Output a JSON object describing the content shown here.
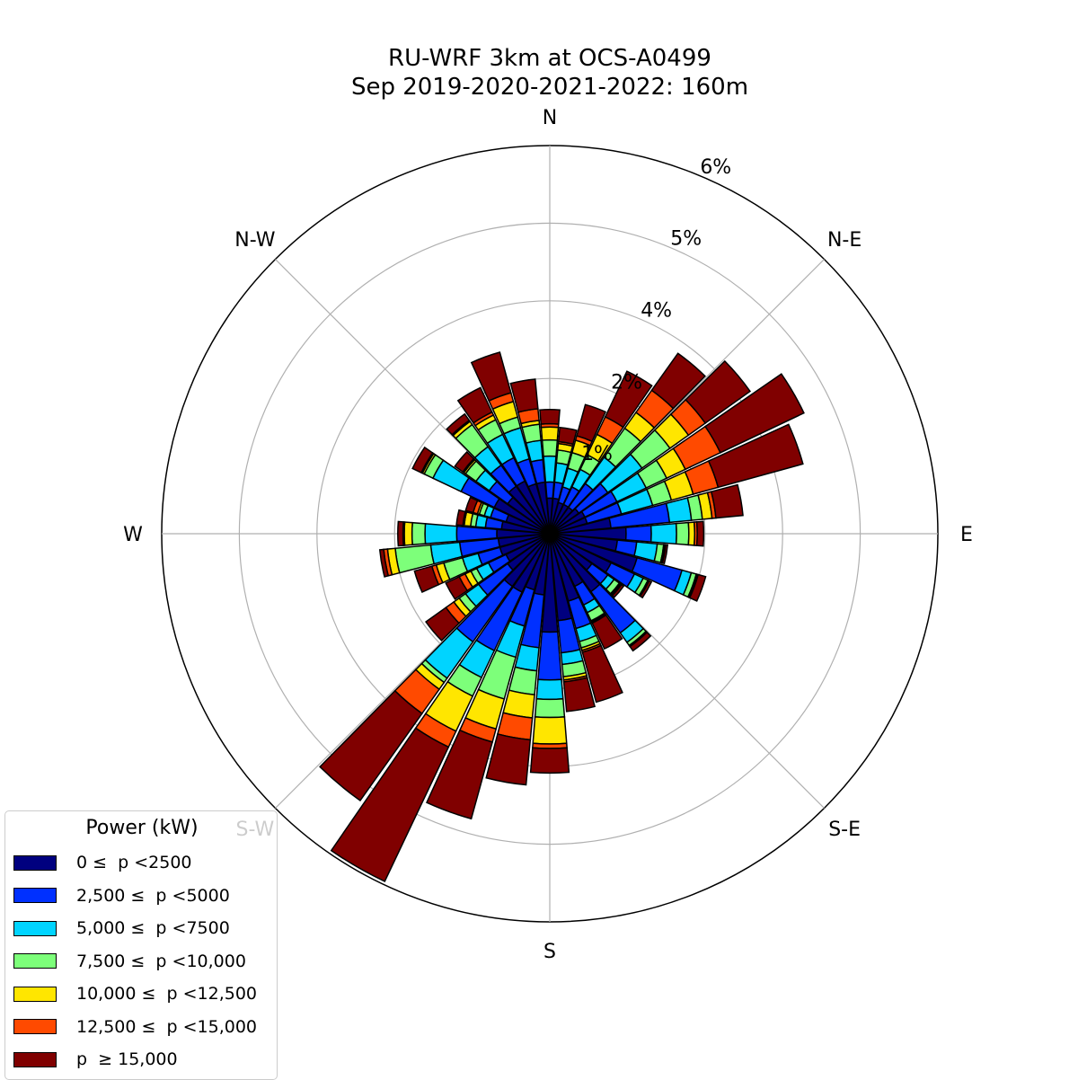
{
  "chart_data": {
    "type": "windrose",
    "title": [
      "RU-WRF 3km at OCS-A0499",
      "Sep 2019-2020-2021-2022: 160m"
    ],
    "direction_labels": [
      {
        "label": "N",
        "deg": 0
      },
      {
        "label": "N-E",
        "deg": 45
      },
      {
        "label": "E",
        "deg": 90
      },
      {
        "label": "S-E",
        "deg": 135
      },
      {
        "label": "S",
        "deg": 180
      },
      {
        "label": "S-W",
        "deg": 225
      },
      {
        "label": "W",
        "deg": 270
      },
      {
        "label": "N-W",
        "deg": 315
      }
    ],
    "rticks": [
      1.2,
      2.4,
      3.6,
      4.8,
      6.0
    ],
    "rtick_labels": [
      "1%",
      "2%",
      "4%",
      "5%",
      "6%"
    ],
    "rmax": 6.0,
    "unit": "% frequency",
    "directions": [
      0,
      10,
      20,
      30,
      40,
      50,
      60,
      70,
      80,
      90,
      100,
      110,
      120,
      130,
      140,
      150,
      160,
      170,
      180,
      190,
      200,
      210,
      220,
      230,
      240,
      250,
      260,
      270,
      280,
      290,
      300,
      310,
      320,
      330,
      340,
      350
    ],
    "legend_title": "Power (kW)",
    "legend_position": "lower-left",
    "series": [
      {
        "name": "0 ≤  p <2500",
        "color": "#00007f",
        "values": [
          0.55,
          0.55,
          0.5,
          0.5,
          0.5,
          0.55,
          0.6,
          0.6,
          0.95,
          1.18,
          1.05,
          1.4,
          1.05,
          0.8,
          1.1,
          0.9,
          1.08,
          1.35,
          1.52,
          0.95,
          0.9,
          1.0,
          1.0,
          0.8,
          0.75,
          0.8,
          0.8,
          0.82,
          0.75,
          0.7,
          0.95,
          0.8,
          0.9,
          0.9,
          0.8,
          0.8
        ]
      },
      {
        "name": "2,500 ≤  p <5000",
        "color": "#0030ff",
        "values": [
          0.25,
          0.25,
          0.25,
          0.3,
          0.45,
          0.55,
          0.55,
          0.55,
          0.91,
          0.39,
          0.3,
          0.72,
          0.4,
          0.3,
          0.78,
          0.32,
          0.44,
          0.5,
          0.74,
          0.82,
          0.58,
          1.0,
          1.05,
          0.55,
          0.3,
          0.35,
          0.6,
          0.62,
          0.25,
          0.25,
          0.57,
          0.35,
          0.4,
          0.4,
          0.4,
          0.35
        ]
      },
      {
        "name": "5,000 ≤  p <7500",
        "color": "#00d4ff",
        "values": [
          0.4,
          0.3,
          0.3,
          0.3,
          0.5,
          0.65,
          0.5,
          0.5,
          0.34,
          0.39,
          0.32,
          0.15,
          0.15,
          0.12,
          0.18,
          0.13,
          0.21,
          0.18,
          0.3,
          0.36,
          0.5,
          0.46,
          0.69,
          0.25,
          0.2,
          0.25,
          0.45,
          0.49,
          0.15,
          0.1,
          0.48,
          0.25,
          0.35,
          0.4,
          0.5,
          0.3
        ]
      },
      {
        "name": "7,500 ≤  p <10,000",
        "color": "#7dff7a",
        "values": [
          0.25,
          0.2,
          0.25,
          0.25,
          0.55,
          0.53,
          0.35,
          0.3,
          0.17,
          0.19,
          0.1,
          0.08,
          0.08,
          0.1,
          0.06,
          0.14,
          0.1,
          0.19,
          0.28,
          0.37,
          0.67,
          0.32,
          0.08,
          0.12,
          0.1,
          0.3,
          0.55,
          0.2,
          0.08,
          0.08,
          0.15,
          0.2,
          0.42,
          0.25,
          0.17,
          0.25
        ]
      },
      {
        "name": "10,000 ≤  p <12,500",
        "color": "#ffe600",
        "values": [
          0.2,
          0.1,
          0.2,
          0.35,
          0.3,
          0.35,
          0.32,
          0.35,
          0.15,
          0.09,
          0.02,
          0.02,
          0.01,
          0.02,
          0.01,
          0.02,
          0.04,
          0.05,
          0.41,
          0.36,
          0.48,
          0.6,
          0.13,
          0.1,
          0.1,
          0.12,
          0.12,
          0.12,
          0.1,
          0.03,
          0.03,
          0.03,
          0.06,
          0.08,
          0.25,
          0.06
        ]
      },
      {
        "name": "12,500 ≤  p <15,000",
        "color": "#ff4a00",
        "values": [
          0.05,
          0.03,
          0.07,
          0.3,
          0.42,
          0.32,
          0.6,
          0.4,
          0.06,
          0.04,
          0.01,
          0.01,
          0.01,
          0.02,
          0.01,
          0.02,
          0.03,
          0.03,
          0.07,
          0.34,
          0.21,
          0.27,
          0.46,
          0.15,
          0.1,
          0.07,
          0.06,
          0.02,
          0.02,
          0.07,
          0.02,
          0.02,
          0.02,
          0.05,
          0.14,
          0.18
        ]
      },
      {
        "name": "p  ≥ 15,000",
        "color": "#800000",
        "values": [
          0.22,
          0.22,
          0.5,
          0.78,
          0.7,
          0.85,
          1.43,
          1.36,
          0.42,
          0.1,
          0.03,
          0.12,
          0.04,
          0.04,
          0.08,
          0.44,
          0.8,
          0.46,
          0.38,
          0.7,
          1.23,
          2.3,
          1.65,
          0.38,
          0.23,
          0.28,
          0.06,
          0.08,
          0.1,
          0.12,
          0.15,
          0.15,
          0.12,
          0.42,
          0.65,
          0.46
        ]
      }
    ]
  }
}
